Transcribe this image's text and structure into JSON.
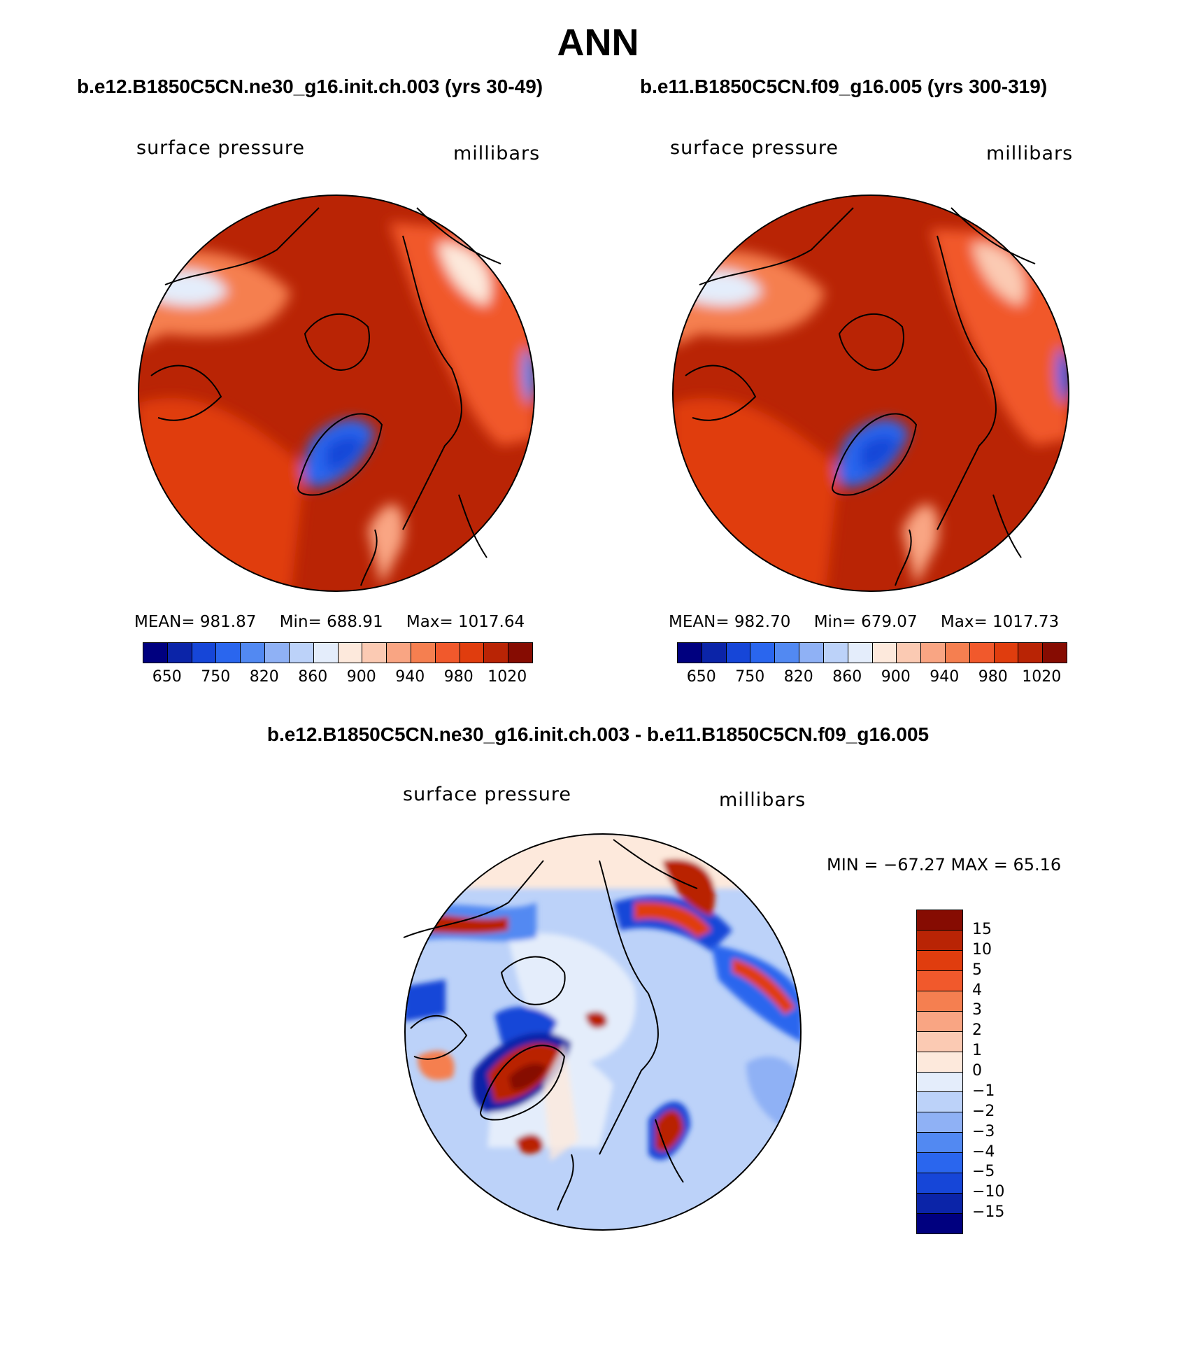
{
  "page": {
    "title": "ANN"
  },
  "panels": [
    {
      "case": "b.e12.B1850C5CN.ne30_g16.init.ch.003 (yrs 30-49)",
      "variable": "surface pressure",
      "units": "millibars",
      "stats": {
        "mean": "MEAN= 981.87",
        "min": "Min= 688.91",
        "max": "Max= 1017.64"
      },
      "colorbar_ticks": [
        "650",
        "750",
        "820",
        "860",
        "900",
        "940",
        "980",
        "1020"
      ]
    },
    {
      "case": "b.e11.B1850C5CN.f09_g16.005 (yrs 300-319)",
      "variable": "surface pressure",
      "units": "millibars",
      "stats": {
        "mean": "MEAN= 982.70",
        "min": "Min= 679.07",
        "max": "Max= 1017.73"
      },
      "colorbar_ticks": [
        "650",
        "750",
        "820",
        "860",
        "900",
        "940",
        "980",
        "1020"
      ]
    }
  ],
  "difference": {
    "title": "b.e12.B1850C5CN.ne30_g16.init.ch.003 - b.e11.B1850C5CN.f09_g16.005",
    "variable": "surface pressure",
    "units": "millibars",
    "minmax": "MIN = −67.27 MAX =  65.16",
    "colorbar_labels": [
      "15",
      "10",
      "5",
      "4",
      "3",
      "2",
      "1",
      "0",
      "−1",
      "−2",
      "−3",
      "−4",
      "−5",
      "−10",
      "−15"
    ]
  },
  "colors": {
    "pressure_scale": [
      "#00007f",
      "#0b24a8",
      "#1646d8",
      "#2a66ee",
      "#5289f2",
      "#8fb1f5",
      "#bcd2f9",
      "#e4edfb",
      "#fde9dc",
      "#fbcab3",
      "#f9a583",
      "#f57f50",
      "#f1592c",
      "#e03d0e",
      "#b92405",
      "#860c02"
    ],
    "diff_scale": [
      "#860c02",
      "#b92405",
      "#e03d0e",
      "#f1592c",
      "#f57f50",
      "#f9a583",
      "#fbcab3",
      "#fde9dc",
      "#e4edfb",
      "#bcd2f9",
      "#8fb1f5",
      "#5289f2",
      "#2a66ee",
      "#1646d8",
      "#0b24a8",
      "#00007f"
    ]
  }
}
